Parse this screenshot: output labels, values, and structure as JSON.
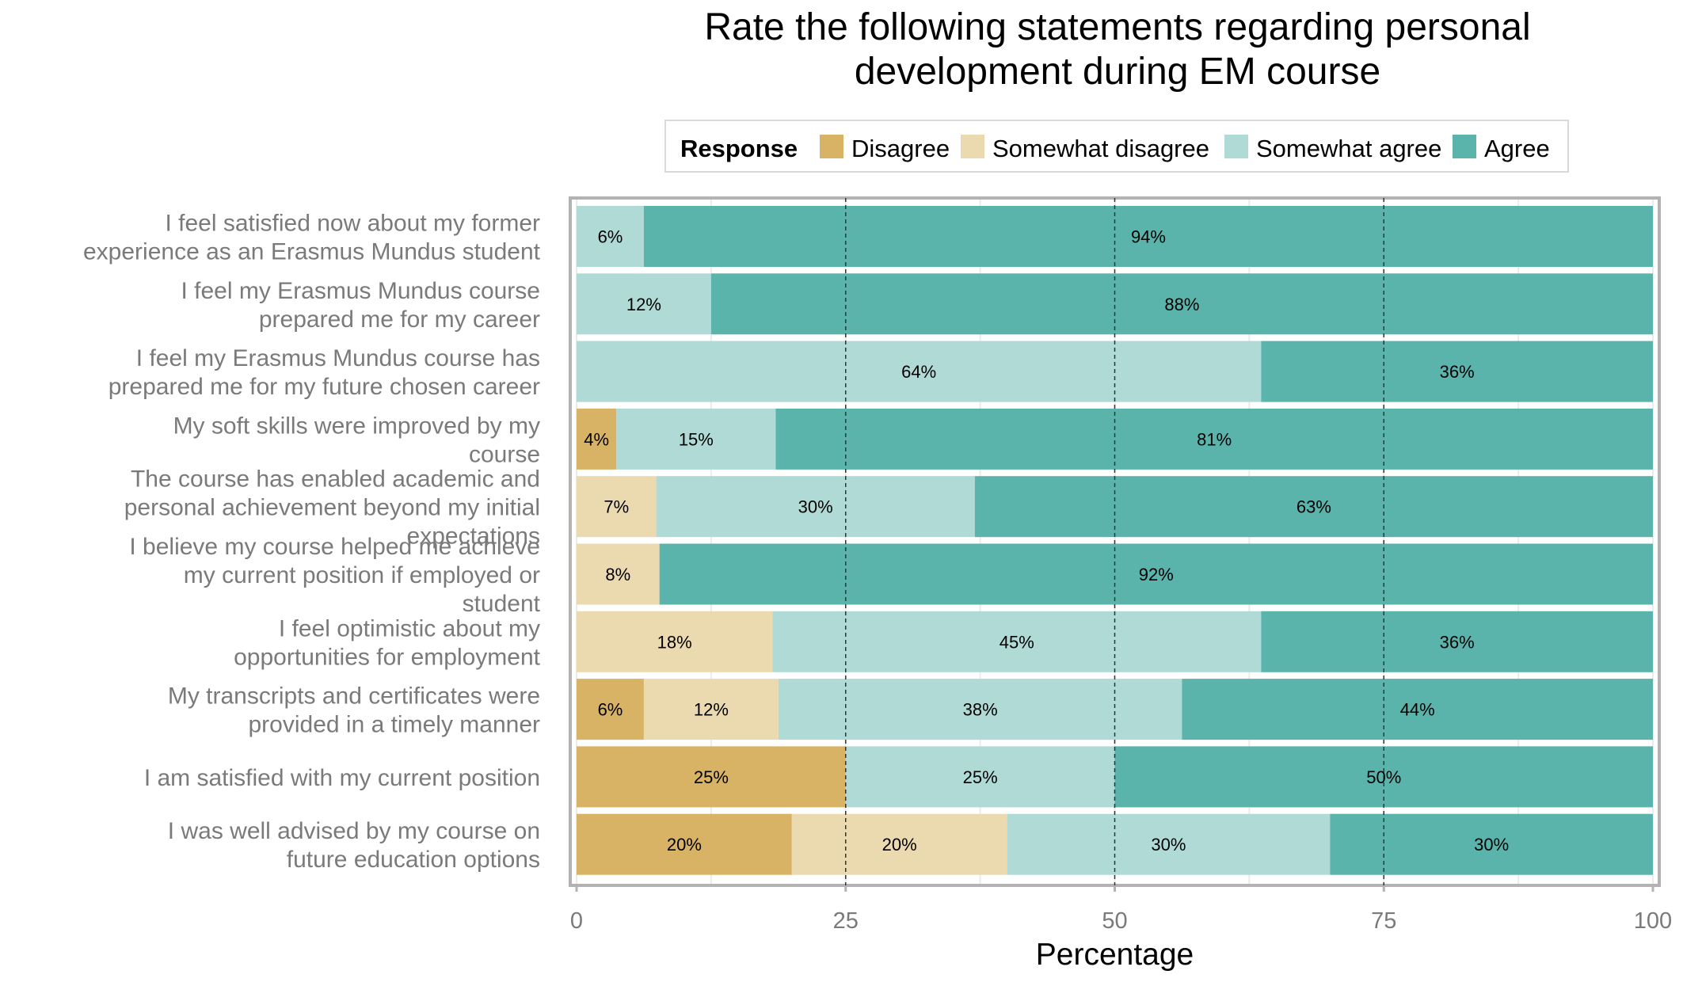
{
  "chart_data": {
    "type": "bar",
    "orientation": "horizontal",
    "stacked": true,
    "title_lines": [
      "Rate the following statements regarding personal",
      "development during EM course"
    ],
    "xlabel": "Percentage",
    "ylabel": "",
    "xlim": [
      0,
      100
    ],
    "x_ticks": [
      "0",
      "25",
      "50",
      "75",
      "100"
    ],
    "legend": {
      "title": "Response",
      "placement": "top",
      "entries": [
        "Disagree",
        "Somewhat disagree",
        "Somewhat agree",
        "Agree"
      ]
    },
    "colors": {
      "Disagree": "#d8b365",
      "Somewhat disagree": "#ebdab0",
      "Somewhat agree": "#afdad6",
      "Agree": "#5ab4ac"
    },
    "reference_lines": [
      25,
      50,
      75
    ],
    "categories": [
      {
        "lines": [
          "I feel satisfied now about my former",
          "experience as an Erasmus Mundus student"
        ]
      },
      {
        "lines": [
          "I feel my Erasmus Mundus course",
          "prepared me for my career"
        ]
      },
      {
        "lines": [
          "I feel my Erasmus Mundus course has",
          "prepared me for my future chosen career"
        ]
      },
      {
        "lines": [
          "My soft skills were improved by my",
          "course"
        ]
      },
      {
        "lines": [
          "The course has enabled academic and",
          "personal achievement beyond my initial",
          "expectations"
        ]
      },
      {
        "lines": [
          "I believe my course helped me achieve",
          "my current position if employed or",
          "student"
        ]
      },
      {
        "lines": [
          "I feel optimistic about my",
          "opportunities for employment"
        ]
      },
      {
        "lines": [
          "My transcripts and certificates were",
          "provided in a timely manner"
        ]
      },
      {
        "lines": [
          "I am satisfied with my current position"
        ]
      },
      {
        "lines": [
          "I was well advised by my course on",
          "future education options"
        ]
      }
    ],
    "series": [
      {
        "name": "Disagree",
        "values": [
          0,
          0,
          0,
          3.7,
          0,
          0,
          0,
          6.25,
          25,
          20
        ],
        "labels": [
          "",
          "",
          "",
          "4%",
          "",
          "",
          "",
          "6%",
          "25%",
          "20%"
        ]
      },
      {
        "name": "Somewhat disagree",
        "values": [
          0,
          0,
          0,
          0,
          7.4,
          7.7,
          18.2,
          12.5,
          0,
          20
        ],
        "labels": [
          "",
          "",
          "",
          "",
          "7%",
          "8%",
          "18%",
          "12%",
          "",
          "20%"
        ]
      },
      {
        "name": "Somewhat agree",
        "values": [
          6.25,
          12.5,
          63.6,
          14.8,
          29.6,
          0,
          45.4,
          37.5,
          25,
          30
        ],
        "labels": [
          "6%",
          "12%",
          "64%",
          "15%",
          "30%",
          "",
          "45%",
          "38%",
          "25%",
          "30%"
        ]
      },
      {
        "name": "Agree",
        "values": [
          93.75,
          87.5,
          36.4,
          81.5,
          63,
          92.3,
          36.4,
          43.75,
          50,
          30
        ],
        "labels": [
          "94%",
          "88%",
          "36%",
          "81%",
          "63%",
          "92%",
          "36%",
          "44%",
          "50%",
          "30%"
        ]
      }
    ]
  }
}
